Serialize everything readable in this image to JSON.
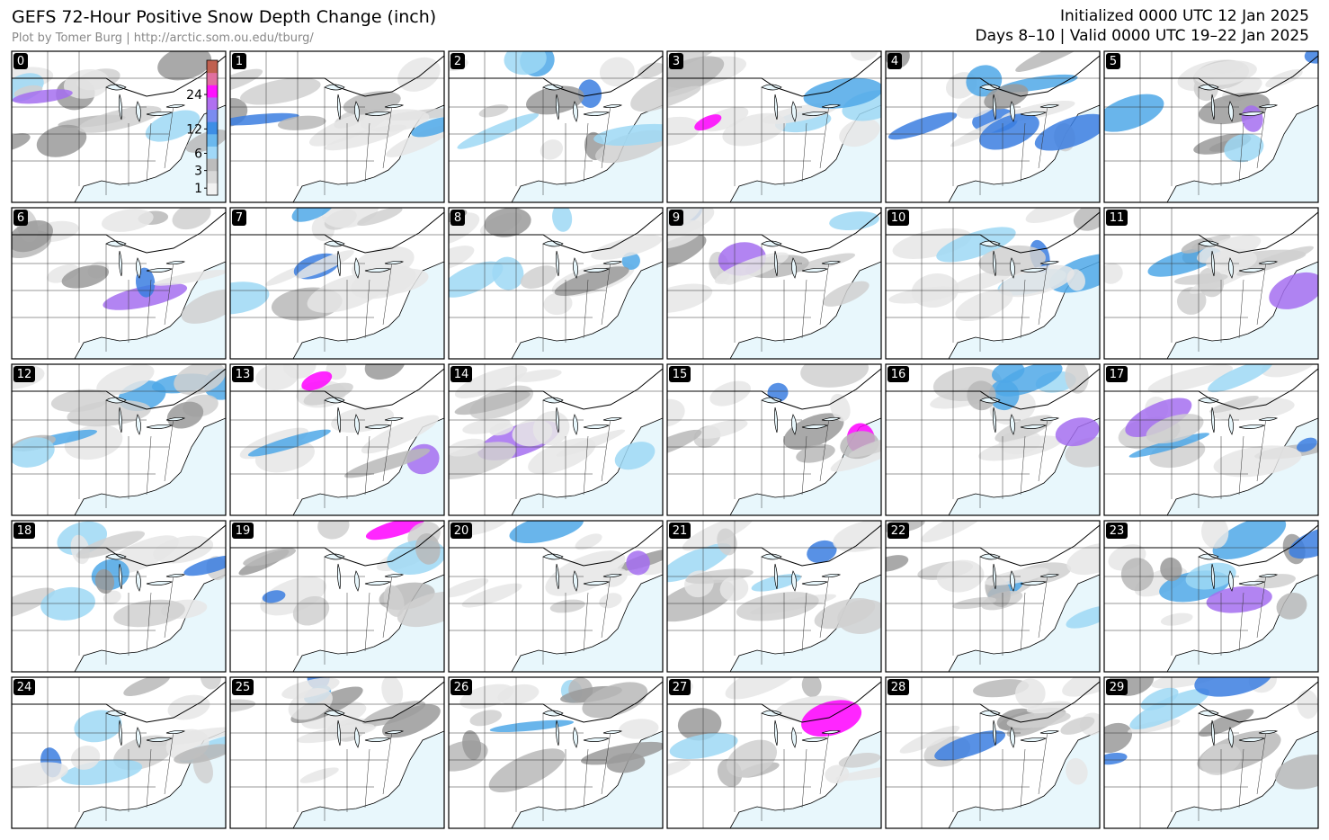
{
  "header": {
    "title": "GEFS 72-Hour Positive Snow Depth Change (inch)",
    "credit": "Plot by Tomer Burg | http://arctic.som.ou.edu/tburg/",
    "initialized": "Initialized 0000 UTC 12 Jan 2025",
    "valid": "Days 8–10 | Valid 0000 UTC 19–22 Jan 2025"
  },
  "colorbar": {
    "range": [
      0.5,
      40
    ],
    "ticks": [
      1,
      3,
      6,
      12,
      24
    ]
  },
  "panels": [
    "0",
    "1",
    "2",
    "3",
    "4",
    "5",
    "6",
    "7",
    "8",
    "9",
    "10",
    "11",
    "12",
    "13",
    "14",
    "15",
    "16",
    "17",
    "18",
    "19",
    "20",
    "21",
    "22",
    "23",
    "24",
    "25",
    "26",
    "27",
    "28",
    "29"
  ]
}
